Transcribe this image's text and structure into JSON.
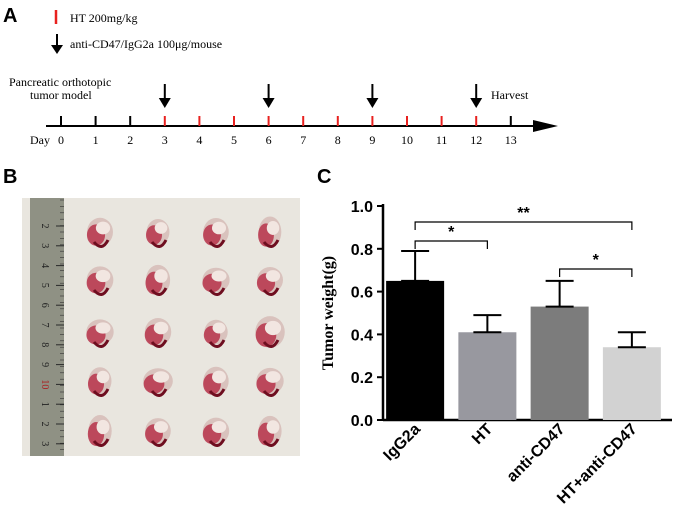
{
  "panels": {
    "a": "A",
    "b": "B",
    "c": "C"
  },
  "legend": {
    "ht": "HT 200mg/kg",
    "antibody": "anti-CD47/IgG2a 100μg/mouse"
  },
  "timeline": {
    "model_label_line1": "Pancreatic orthotopic",
    "model_label_line2": "tumor model",
    "day_label": "Day",
    "harvest_label": "Harvest",
    "days": [
      "0",
      "1",
      "2",
      "3",
      "4",
      "5",
      "6",
      "7",
      "8",
      "9",
      "10",
      "11",
      "12",
      "13"
    ],
    "ht_days": [
      3,
      4,
      5,
      6,
      7,
      8,
      9,
      10,
      11,
      12
    ],
    "antibody_days": [
      3,
      6,
      9,
      12
    ]
  },
  "photo": {
    "ruler_marks": [
      "2",
      "3",
      "4",
      "5",
      "6",
      "7",
      "8",
      "9",
      "10",
      "1",
      "2",
      "3"
    ]
  },
  "chart_data": {
    "type": "bar",
    "title": "",
    "xlabel": "",
    "ylabel": "Tumor weight(g)",
    "categories": [
      "IgG2a",
      "HT",
      "anti-CD47",
      "HT+anti-CD47"
    ],
    "values": [
      0.65,
      0.41,
      0.53,
      0.34
    ],
    "errors": [
      0.14,
      0.08,
      0.12,
      0.07
    ],
    "colors": [
      "#000000",
      "#98989f",
      "#7c7c7c",
      "#d2d2d2"
    ],
    "ylim": [
      0,
      1.0
    ],
    "yticks": [
      "0.0",
      "0.2",
      "0.4",
      "0.6",
      "0.8",
      "1.0"
    ],
    "significance": [
      {
        "from": 0,
        "to": 1,
        "label": "*"
      },
      {
        "from": 0,
        "to": 3,
        "label": "**"
      },
      {
        "from": 2,
        "to": 3,
        "label": "*"
      }
    ]
  },
  "colors": {
    "ht_mark": "#e8211f",
    "axis": "#000000",
    "photo_bg": "#e9e6df"
  }
}
